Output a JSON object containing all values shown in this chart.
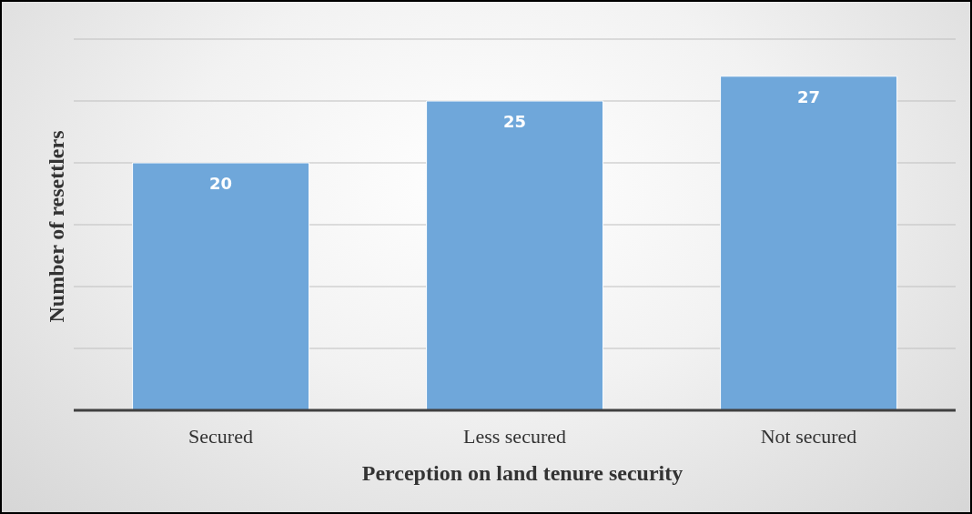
{
  "chart_data": {
    "type": "bar",
    "xlabel": "Perception on land tenure security",
    "ylabel": "Number of resettlers",
    "categories": [
      "Secured",
      "Less secured",
      "Not secured"
    ],
    "values": [
      20,
      25,
      27
    ],
    "color": "#6fa7da",
    "ylim": [
      0,
      30
    ],
    "yticks": [
      {
        "value": 0,
        "label": null
      },
      {
        "value": 5,
        "label": null
      },
      {
        "value": 10,
        "label": null
      },
      {
        "value": 15,
        "label": null
      },
      {
        "value": 20,
        "label": null
      },
      {
        "value": 25,
        "label": null
      },
      {
        "value": 30,
        "label": null
      }
    ],
    "grid": "y",
    "tick_labels": "x",
    "data_labels": true
  }
}
